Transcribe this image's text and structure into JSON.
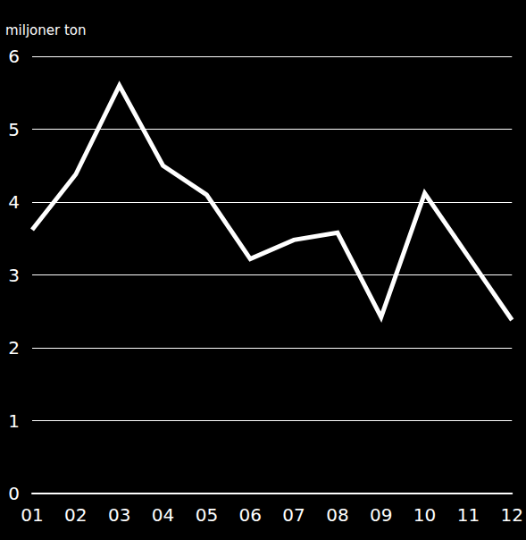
{
  "chart_data": {
    "type": "line",
    "y_label": "miljoner ton",
    "categories": [
      "01",
      "02",
      "03",
      "04",
      "05",
      "06",
      "07",
      "08",
      "09",
      "10",
      "11",
      "12"
    ],
    "values": [
      3.62,
      4.38,
      5.6,
      4.5,
      4.1,
      3.22,
      3.48,
      3.58,
      2.42,
      4.12,
      3.25,
      2.38
    ],
    "color": "#ffffff",
    "ylim": [
      0,
      6
    ],
    "yticks": [
      0,
      1,
      2,
      3,
      4,
      5,
      6
    ],
    "grid": true
  }
}
